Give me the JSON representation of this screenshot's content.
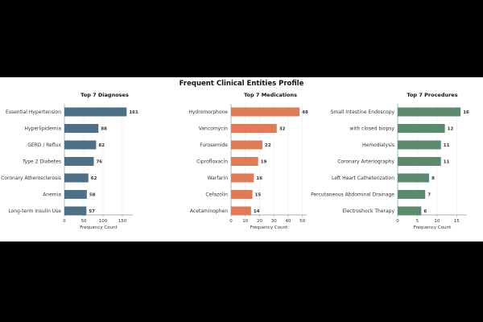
{
  "figure_title": "Frequent Clinical Entities Profile",
  "colors": {
    "letterbox": "#000000",
    "background": "#ffffff",
    "diagnoses": "#4f6f86",
    "medications": "#e07b5a",
    "procedures": "#5b8a6e",
    "grid": "#e8e8e8",
    "axis": "#999999",
    "text": "#333333"
  },
  "chart_data": [
    {
      "type": "bar",
      "orientation": "horizontal",
      "title": "Top 7 Diagnoses",
      "xlabel": "Frequency Count",
      "categories": [
        "Essential Hypertension",
        "Hyperlipidemia",
        "GERD / Reflux",
        "Type 2 Diabetes",
        "Coronary Atherosclerosis",
        "Anemia",
        "Long-term Insulin Use"
      ],
      "values": [
        161,
        88,
        82,
        76,
        62,
        58,
        57
      ],
      "xlim": [
        0,
        177
      ],
      "xticks": [
        0,
        50,
        100,
        150
      ],
      "grid": true
    },
    {
      "type": "bar",
      "orientation": "horizontal",
      "title": "Top 7 Medications",
      "xlabel": "Frequency Count",
      "categories": [
        "Hydromorphone",
        "Vancomycin",
        "Furosemide",
        "Ciprofloxacin",
        "Warfarin",
        "Cefazolin",
        "Acetaminophen"
      ],
      "values": [
        48,
        32,
        22,
        19,
        16,
        15,
        14
      ],
      "xlim": [
        0,
        53
      ],
      "xticks": [
        0,
        10,
        20,
        30,
        40,
        50
      ],
      "grid": true
    },
    {
      "type": "bar",
      "orientation": "horizontal",
      "title": "Top 7 Procedures",
      "xlabel": "Frequency Count",
      "categories": [
        "Small Intestine Endoscopy",
        "with closed biopsy",
        "Hemodialysis",
        "Coronary Arteriography",
        "Left Heart Catheterization",
        "Percutaneous Abdominal Drainage",
        "Electroshock Therapy"
      ],
      "values": [
        16,
        12,
        11,
        11,
        8,
        7,
        6
      ],
      "xlim": [
        0,
        17.6
      ],
      "xticks": [
        0,
        5,
        10,
        15
      ],
      "grid": true
    }
  ]
}
